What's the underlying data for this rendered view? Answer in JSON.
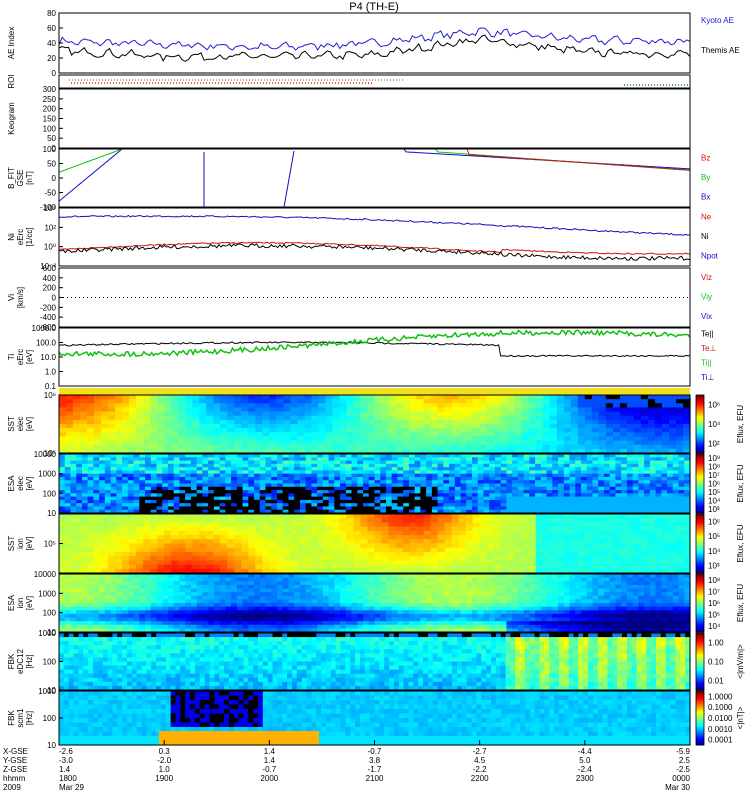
{
  "title": "P4 (TH-E)",
  "panels": [
    {
      "id": "ae",
      "ylabel": [
        "AE Index"
      ],
      "ticks": [
        "80",
        "60",
        "40",
        "20",
        "0"
      ],
      "legend": [
        {
          "label": "Kyoto AE",
          "color": "#1f1fd0"
        },
        {
          "label": "Themis AE",
          "color": "#000000"
        }
      ]
    },
    {
      "id": "roi",
      "ylabel": [
        "ROI"
      ],
      "ticks": [],
      "legend": []
    },
    {
      "id": "keogram",
      "ylabel": [
        "Keogram"
      ],
      "ticks": [
        "300",
        "250",
        "200",
        "150",
        "100",
        "50",
        "0"
      ],
      "legend": []
    },
    {
      "id": "bfit",
      "ylabel": [
        "B_FIT",
        "GSE",
        "[nT]"
      ],
      "ticks": [
        "100",
        "50",
        "0",
        "-50",
        "-100"
      ],
      "legend": [
        {
          "label": "Bz",
          "color": "#d01010"
        },
        {
          "label": "By",
          "color": "#10c010"
        },
        {
          "label": "Bx",
          "color": "#1010c0"
        }
      ]
    },
    {
      "id": "ni",
      "ylabel": [
        "Ni",
        "eErc",
        "[1/cc]"
      ],
      "ticks": [
        "10⁴",
        "10²",
        "10⁰",
        "10⁻²"
      ],
      "legend": [
        {
          "label": "Ne",
          "color": "#d01010"
        },
        {
          "label": "Ni",
          "color": "#000000"
        },
        {
          "label": "Npot",
          "color": "#1010c0"
        }
      ]
    },
    {
      "id": "vi",
      "ylabel": [
        "Vi",
        "[km/s]"
      ],
      "ticks": [
        "600",
        "400",
        "200",
        "0",
        "-200",
        "-400",
        "-600"
      ],
      "legend": [
        {
          "label": "Viz",
          "color": "#d01010"
        },
        {
          "label": "Viy",
          "color": "#10c010"
        },
        {
          "label": "Vix",
          "color": "#1010c0"
        }
      ]
    },
    {
      "id": "ti",
      "ylabel": [
        "Ti",
        "eErc",
        "[eV]"
      ],
      "ticks": [
        "1000.0",
        "100.0",
        "10.0",
        "1.0",
        "0.1"
      ],
      "legend": [
        {
          "label": "Te||",
          "color": "#000000"
        },
        {
          "label": "Te⊥",
          "color": "#d01010"
        },
        {
          "label": "Ti||",
          "color": "#10c010"
        },
        {
          "label": "Ti⊥",
          "color": "#1010c0"
        }
      ]
    },
    {
      "id": "sst_e",
      "ylabel": [
        "SST",
        "elec",
        "[eV]"
      ],
      "ticks": [
        "10⁶",
        "10⁵"
      ],
      "legend": [],
      "cbar": {
        "label": "Eflux, EFU",
        "ticks": [
          "10⁶",
          "10⁴",
          "10²"
        ]
      }
    },
    {
      "id": "esa_e",
      "ylabel": [
        "ESA",
        "elec",
        "[eV]"
      ],
      "ticks": [
        "10000",
        "1000",
        "100",
        "10"
      ],
      "legend": [],
      "cbar": {
        "label": "Eflux, EFU",
        "ticks": [
          "10⁹",
          "10⁸",
          "10⁷",
          "10⁶",
          "10⁵",
          "10⁴",
          "10³"
        ]
      }
    },
    {
      "id": "sst_i",
      "ylabel": [
        "SST",
        "ion",
        "[eV]"
      ],
      "ticks": [
        "10⁵"
      ],
      "legend": [],
      "cbar": {
        "label": "Eflux, EFU",
        "ticks": [
          "10⁶",
          "10⁵",
          "10⁴",
          "10³"
        ]
      }
    },
    {
      "id": "esa_i",
      "ylabel": [
        "ESA",
        "ion",
        "[eV]"
      ],
      "ticks": [
        "10000",
        "1000",
        "100",
        "10"
      ],
      "legend": [],
      "cbar": {
        "label": "Eflux, EFU",
        "ticks": [
          "10⁸",
          "10⁷",
          "10⁶",
          "10⁵",
          "10⁴"
        ]
      }
    },
    {
      "id": "fbk_e",
      "ylabel": [
        "FBK",
        "eDC12",
        "[Hz]"
      ],
      "ticks": [
        "1000",
        "100",
        "10"
      ],
      "legend": [],
      "cbar": {
        "label": "<|mV/m|>",
        "ticks": [
          "1.00",
          "0.10",
          "0.01"
        ]
      }
    },
    {
      "id": "fbk_s",
      "ylabel": [
        "FBK",
        "scm1",
        "[Hz]"
      ],
      "ticks": [
        "1000",
        "100",
        "10"
      ],
      "legend": [],
      "cbar": {
        "label": "<|nT|>",
        "ticks": [
          "1.0000",
          "0.1000",
          "0.0100",
          "0.0010",
          "0.0001"
        ]
      }
    }
  ],
  "xaxis": {
    "row_labels": [
      "X-GSE",
      "Y-GSE",
      "Z-GSE",
      "hhmm",
      "2009"
    ],
    "columns": [
      {
        "vals": [
          "-2.6",
          "-3.0",
          "1.4",
          "1800",
          "Mar 29"
        ]
      },
      {
        "vals": [
          "0.3",
          "-2.0",
          "1.0",
          "1900",
          ""
        ]
      },
      {
        "vals": [
          "1.4",
          "1.4",
          "-0.7",
          "2000",
          ""
        ]
      },
      {
        "vals": [
          "-0.7",
          "3.8",
          "-1.7",
          "2100",
          ""
        ]
      },
      {
        "vals": [
          "-2.7",
          "4.5",
          "-2.2",
          "2200",
          ""
        ]
      },
      {
        "vals": [
          "-4.4",
          "5.0",
          "-2.4",
          "2300",
          ""
        ]
      },
      {
        "vals": [
          "-5.9",
          "2.5",
          "-2.5",
          "0000",
          "Mar 30"
        ]
      }
    ]
  },
  "chart_data": {
    "type": "line",
    "title": "P4 (TH-E)",
    "x": [
      "1800",
      "1900",
      "2000",
      "2100",
      "2200",
      "2300",
      "0000"
    ],
    "series": [
      {
        "name": "Kyoto AE",
        "values": [
          42,
          38,
          34,
          40,
          56,
          44,
          42
        ]
      },
      {
        "name": "Themis AE",
        "values": [
          30,
          22,
          22,
          24,
          45,
          28,
          25
        ]
      }
    ],
    "xlabel": "hhmm",
    "ylabel": "AE Index",
    "ylim": [
      0,
      80
    ]
  }
}
